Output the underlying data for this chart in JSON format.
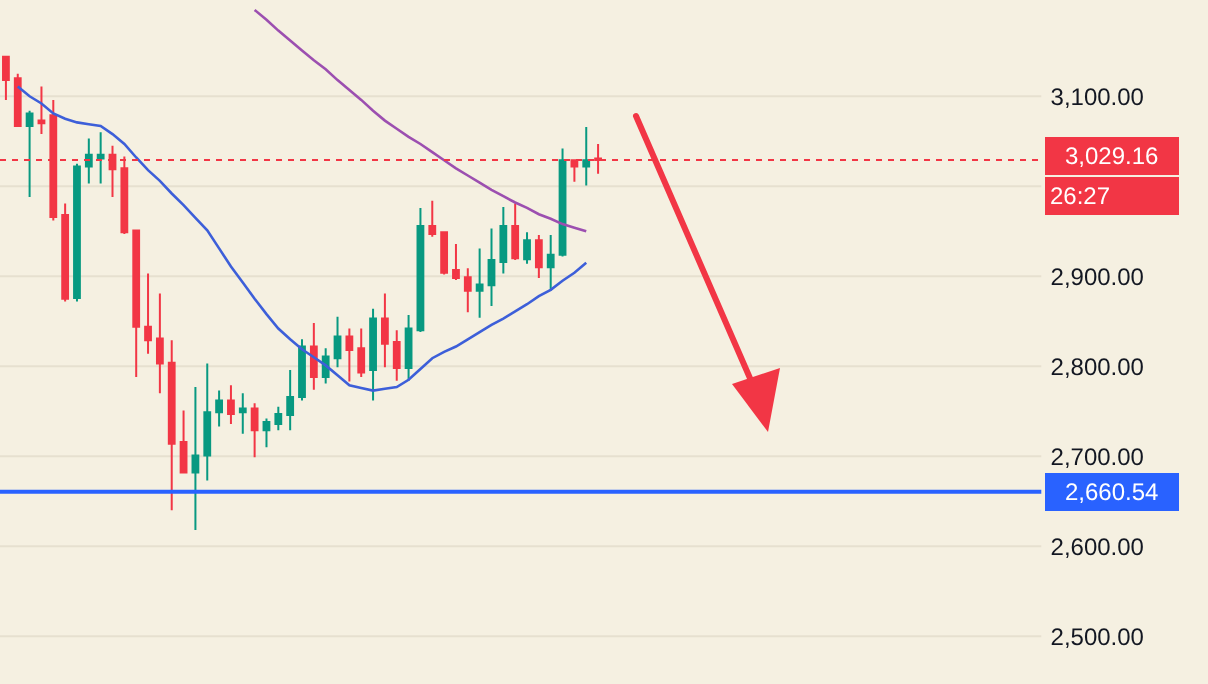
{
  "chart_data": {
    "type": "candlestick",
    "categories": [
      null,
      null,
      null,
      null,
      null,
      null,
      null,
      null,
      null,
      null,
      null,
      null,
      null,
      null,
      null,
      null,
      null,
      null,
      null,
      null,
      null,
      null,
      null,
      null,
      null,
      null,
      null,
      null,
      null,
      null,
      null,
      null,
      null,
      null,
      null,
      null,
      null,
      null,
      null,
      null,
      null,
      null,
      null,
      null,
      null,
      null,
      null,
      null,
      null,
      null,
      null
    ],
    "ylim": [
      2447,
      3207
    ],
    "yticks": [
      {
        "value": 2500,
        "label": "2,500.00"
      },
      {
        "value": 2600,
        "label": "2,600.00"
      },
      {
        "value": 2700,
        "label": "2,700.00"
      },
      {
        "value": 2800,
        "label": "2,800.00"
      },
      {
        "value": 2900,
        "label": "2,900.00"
      },
      {
        "value": 3000,
        "label": null
      },
      {
        "value": 3100,
        "label": "3,100.00"
      }
    ],
    "tick_labels": "y",
    "grid": "y",
    "series": [
      {
        "ohlc": [
          [
            3144,
            3144,
            3096,
            3118
          ],
          [
            3120,
            3125,
            3066,
            3067
          ],
          [
            3067,
            3084,
            2988,
            3081
          ],
          [
            3073,
            3111,
            3058,
            3070
          ],
          [
            3079,
            3096,
            2962,
            2966
          ],
          [
            2968,
            2981,
            2872,
            2875
          ],
          [
            2876,
            3025,
            2872,
            3022
          ],
          [
            3022,
            3053,
            3003,
            3035
          ],
          [
            3031,
            3060,
            3003,
            3035
          ],
          [
            3035,
            3045,
            2988,
            3019
          ],
          [
            3020,
            3033,
            2947,
            2949
          ],
          [
            2951,
            2951,
            2788,
            2844
          ],
          [
            2844,
            2903,
            2814,
            2829
          ],
          [
            2831,
            2881,
            2770,
            2803
          ],
          [
            2804,
            2829,
            2640,
            2714
          ],
          [
            2716,
            2751,
            2681,
            2682
          ],
          [
            2682,
            2777,
            2618,
            2701
          ],
          [
            2701,
            2803,
            2673,
            2749
          ],
          [
            2749,
            2773,
            2733,
            2762
          ],
          [
            2762,
            2779,
            2736,
            2747
          ],
          [
            2749,
            2770,
            2725,
            2753
          ],
          [
            2753,
            2759,
            2699,
            2729
          ],
          [
            2729,
            2742,
            2710,
            2738
          ],
          [
            2736,
            2755,
            2729,
            2747
          ],
          [
            2746,
            2796,
            2729,
            2766
          ],
          [
            2766,
            2830,
            2762,
            2822
          ],
          [
            2822,
            2848,
            2774,
            2788
          ],
          [
            2788,
            2820,
            2781,
            2811
          ],
          [
            2809,
            2855,
            2799,
            2833
          ],
          [
            2833,
            2842,
            2783,
            2818
          ],
          [
            2820,
            2842,
            2788,
            2793
          ],
          [
            2796,
            2864,
            2762,
            2853
          ],
          [
            2853,
            2881,
            2799,
            2825
          ],
          [
            2827,
            2840,
            2784,
            2798
          ],
          [
            2798,
            2857,
            2784,
            2842
          ],
          [
            2840,
            2976,
            2838,
            2956
          ],
          [
            2956,
            2984,
            2944,
            2947
          ],
          [
            2949,
            2949,
            2902,
            2904
          ],
          [
            2907,
            2936,
            2896,
            2898
          ],
          [
            2899,
            2909,
            2860,
            2884
          ],
          [
            2884,
            2931,
            2854,
            2891
          ],
          [
            2890,
            2953,
            2867,
            2918
          ],
          [
            2916,
            2977,
            2903,
            2956
          ],
          [
            2956,
            2981,
            2918,
            2920
          ],
          [
            2919,
            2949,
            2914,
            2940
          ],
          [
            2940,
            2946,
            2898,
            2910
          ],
          [
            2910,
            2946,
            2884,
            2924
          ],
          [
            2924,
            3042,
            2922,
            3029
          ],
          [
            3029,
            3029,
            3005,
            3022
          ],
          [
            3022,
            3066,
            3001,
            3029
          ],
          [
            3031,
            3047,
            3014,
            3029.16
          ]
        ],
        "colors": [
          "#f23645",
          "#f23645",
          "#089981",
          "#f23645",
          "#f23645",
          "#f23645",
          "#089981",
          "#089981",
          "#089981",
          "#f23645",
          "#f23645",
          "#f23645",
          "#f23645",
          "#f23645",
          "#f23645",
          "#f23645",
          "#089981",
          "#089981",
          "#089981",
          "#f23645",
          "#089981",
          "#f23645",
          "#089981",
          "#089981",
          "#089981",
          "#089981",
          "#f23645",
          "#089981",
          "#089981",
          "#f23645",
          "#f23645",
          "#089981",
          "#f23645",
          "#f23645",
          "#089981",
          "#089981",
          "#f23645",
          "#f23645",
          "#f23645",
          "#f23645",
          "#089981",
          "#089981",
          "#089981",
          "#f23645",
          "#089981",
          "#f23645",
          "#089981",
          "#089981",
          "#f23645",
          "#089981",
          "#f23645"
        ]
      },
      {
        "type": "line",
        "color": "#3d5fd9",
        "values": [
          null,
          3111,
          3100,
          3092,
          3081,
          3075,
          3071,
          3069,
          3067,
          3058,
          3047,
          3032,
          3018,
          3006,
          2992,
          2979,
          2965,
          2951,
          2931,
          2911,
          2893,
          2875,
          2858,
          2842,
          2830,
          2819,
          2810,
          2801,
          2790,
          2779,
          2776,
          2773,
          2775,
          2777,
          2785,
          2797,
          2809,
          2816,
          2822,
          2830,
          2838,
          2846,
          2853,
          2861,
          2869,
          2878,
          2885,
          2895,
          2904,
          2915,
          null
        ]
      },
      {
        "type": "line",
        "color": "#9c4fb0",
        "values": [
          null,
          null,
          null,
          null,
          null,
          null,
          null,
          null,
          null,
          null,
          null,
          null,
          null,
          null,
          null,
          null,
          null,
          null,
          null,
          null,
          null,
          3196,
          3185,
          3173,
          3162,
          3151,
          3140,
          3130,
          3118,
          3107,
          3096,
          3084,
          3073,
          3064,
          3055,
          3047,
          3038,
          3029,
          3020,
          3012,
          3004,
          2996,
          2989,
          2982,
          2976,
          2969,
          2964,
          2958,
          2954,
          2950,
          null
        ]
      }
    ],
    "ref_lines": [
      {
        "axis": "y",
        "value": 3029.16,
        "label": "3,029.16",
        "color": "#f23645",
        "line_style": "dotted"
      },
      {
        "axis": "y",
        "value": 2660.54,
        "label": "2,660.54",
        "color": "#2962ff",
        "line_style": "solid"
      }
    ],
    "annotations": [
      "26:27"
    ]
  }
}
